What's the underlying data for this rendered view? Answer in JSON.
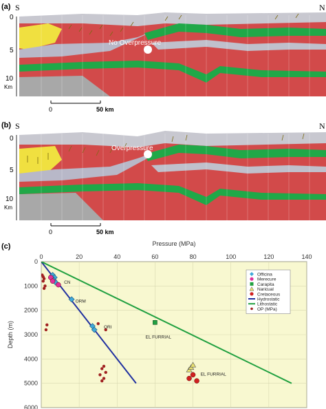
{
  "panel_a": {
    "label": "(a)",
    "left_dir": "S",
    "right_dir": "N",
    "annotation": "No Overpressure",
    "depth_ticks": [
      "0",
      "5",
      "10"
    ],
    "depth_unit": "Km",
    "scale": [
      "0",
      "50 km"
    ]
  },
  "panel_b": {
    "label": "(b)",
    "left_dir": "S",
    "right_dir": "N",
    "annotation": "Overpressure",
    "depth_ticks": [
      "0",
      "5",
      "10"
    ],
    "depth_unit": "Km",
    "scale": [
      "0",
      "50 km"
    ]
  },
  "panel_c": {
    "label": "(c)"
  },
  "chart_data": {
    "type": "scatter",
    "title": "",
    "xlabel": "Pressure (MPa)",
    "ylabel": "Depth (m)",
    "xlim": [
      0,
      140
    ],
    "ylim": [
      0,
      6000
    ],
    "y_inverted": true,
    "x_ticks": [
      "0",
      "20",
      "40",
      "60",
      "80",
      "100",
      "120",
      "140"
    ],
    "y_ticks": [
      "0",
      "1000",
      "2000",
      "3000",
      "4000",
      "5000",
      "6000"
    ],
    "grid": true,
    "background": "#f8f8d0",
    "legend_position": "top-right",
    "annotations": [
      {
        "text": "CN",
        "x": 12,
        "y": 900
      },
      {
        "text": "ORM",
        "x": 18,
        "y": 1680
      },
      {
        "text": "ORI",
        "x": 33,
        "y": 2750
      },
      {
        "text": "EL FURRIAL",
        "x": 55,
        "y": 3150
      },
      {
        "text": "EL FURRIAL",
        "x": 84,
        "y": 4680
      }
    ],
    "series": [
      {
        "name": "Officina",
        "marker": "diamond",
        "color": "#40a8d8",
        "points": [
          [
            6,
            550
          ],
          [
            7,
            650
          ],
          [
            6.5,
            750
          ],
          [
            7.5,
            850
          ],
          [
            16,
            1550
          ],
          [
            27,
            2650
          ],
          [
            28,
            2800
          ]
        ]
      },
      {
        "name": "Merecure",
        "marker": "circle",
        "color": "#e0309a",
        "points": [
          [
            5,
            650
          ],
          [
            6,
            800
          ],
          [
            9,
            950
          ]
        ]
      },
      {
        "name": "Carapita",
        "marker": "square",
        "color": "#20a040",
        "points": [
          [
            60,
            2500
          ]
        ]
      },
      {
        "name": "Naricual",
        "marker": "triangle",
        "color": "#e8e070",
        "points": [
          [
            78,
            4450
          ],
          [
            79,
            4350
          ],
          [
            80,
            4250
          ]
        ]
      },
      {
        "name": "Cretaceous",
        "marker": "circle",
        "color": "#d02020",
        "points": [
          [
            78,
            4800
          ],
          [
            82,
            4900
          ],
          [
            80,
            4650
          ]
        ]
      },
      {
        "name": "Hydrostatic",
        "type": "line",
        "color": "#2030a0",
        "points": [
          [
            0,
            0
          ],
          [
            50,
            5000
          ]
        ]
      },
      {
        "name": "Lithostatic",
        "type": "line",
        "color": "#20a040",
        "points": [
          [
            0,
            0
          ],
          [
            132,
            5000
          ]
        ]
      },
      {
        "name": "OP (MPa)",
        "marker": "small-circle",
        "color": "#a02020",
        "points": [
          [
            0.5,
            550
          ],
          [
            1,
            620
          ],
          [
            1.5,
            700
          ],
          [
            1,
            800
          ],
          [
            2,
            1000
          ],
          [
            1.5,
            1100
          ],
          [
            3,
            2600
          ],
          [
            2.5,
            2800
          ],
          [
            30,
            2550
          ],
          [
            34,
            2800
          ],
          [
            33,
            4300
          ],
          [
            32,
            4400
          ],
          [
            34,
            4550
          ],
          [
            31,
            4650
          ],
          [
            33,
            4800
          ],
          [
            32,
            4900
          ]
        ]
      }
    ]
  }
}
